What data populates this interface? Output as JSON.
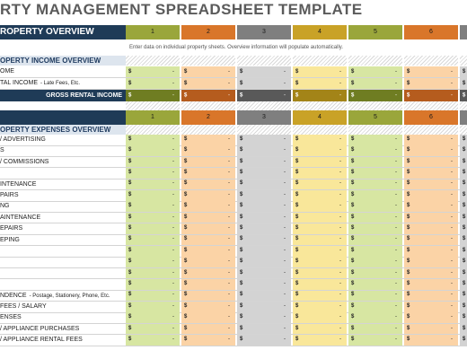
{
  "title": "RTY MANAGEMENT SPREADSHEET TEMPLATE",
  "overview": {
    "label": "ROPERTY OVERVIEW",
    "note": "Enter data on individual property sheets. Overview information will populate automatically."
  },
  "columns": [
    "1",
    "2",
    "3",
    "4",
    "5",
    "6"
  ],
  "column_colors": {
    "light": [
      "#d7e6a2",
      "#fbd3a6",
      "#d3d3d3",
      "#f9e79a",
      "#d7e6a2",
      "#fbd3a6",
      "#d3d3d3"
    ],
    "header": [
      "#9aa63b",
      "#d9762a",
      "#7f7f7f",
      "#c9a227",
      "#9aa63b",
      "#d9762a",
      "#7f7f7f"
    ],
    "total": [
      "#6f7d22",
      "#b55c1e",
      "#595959",
      "#a38418",
      "#6f7d22",
      "#b55c1e",
      "#595959"
    ]
  },
  "currency": "$",
  "dash": "-",
  "income": {
    "header": "OPERTY INCOME OVERVIEW",
    "rows": [
      {
        "label": "OME",
        "sub": ""
      },
      {
        "label": "TAL INCOME",
        "sub": "- Late Fees, Etc."
      }
    ],
    "total_label": "GROSS RENTAL INCOME"
  },
  "expenses": {
    "header": "OPERTY EXPENSES OVERVIEW",
    "rows": [
      {
        "label": "/ ADVERTISING",
        "sub": ""
      },
      {
        "label": "S",
        "sub": ""
      },
      {
        "label": "/ COMMISSIONS",
        "sub": ""
      },
      {
        "label": "",
        "sub": ""
      },
      {
        "label": "INTENANCE",
        "sub": ""
      },
      {
        "label": "PAIRS",
        "sub": ""
      },
      {
        "label": "NG",
        "sub": ""
      },
      {
        "label": "AINTENANCE",
        "sub": ""
      },
      {
        "label": "EPAIRS",
        "sub": ""
      },
      {
        "label": "EPING",
        "sub": ""
      },
      {
        "label": "",
        "sub": ""
      },
      {
        "label": "",
        "sub": ""
      },
      {
        "label": "",
        "sub": ""
      },
      {
        "label": "",
        "sub": ""
      },
      {
        "label": "NDENCE",
        "sub": "- Postage, Stationery, Phone, Etc."
      },
      {
        "label": "FEES / SALARY",
        "sub": ""
      },
      {
        "label": "ENSES",
        "sub": ""
      },
      {
        "label": "/ APPLIANCE PURCHASES",
        "sub": ""
      },
      {
        "label": "/ APPLIANCE RENTAL FEES",
        "sub": ""
      }
    ]
  }
}
